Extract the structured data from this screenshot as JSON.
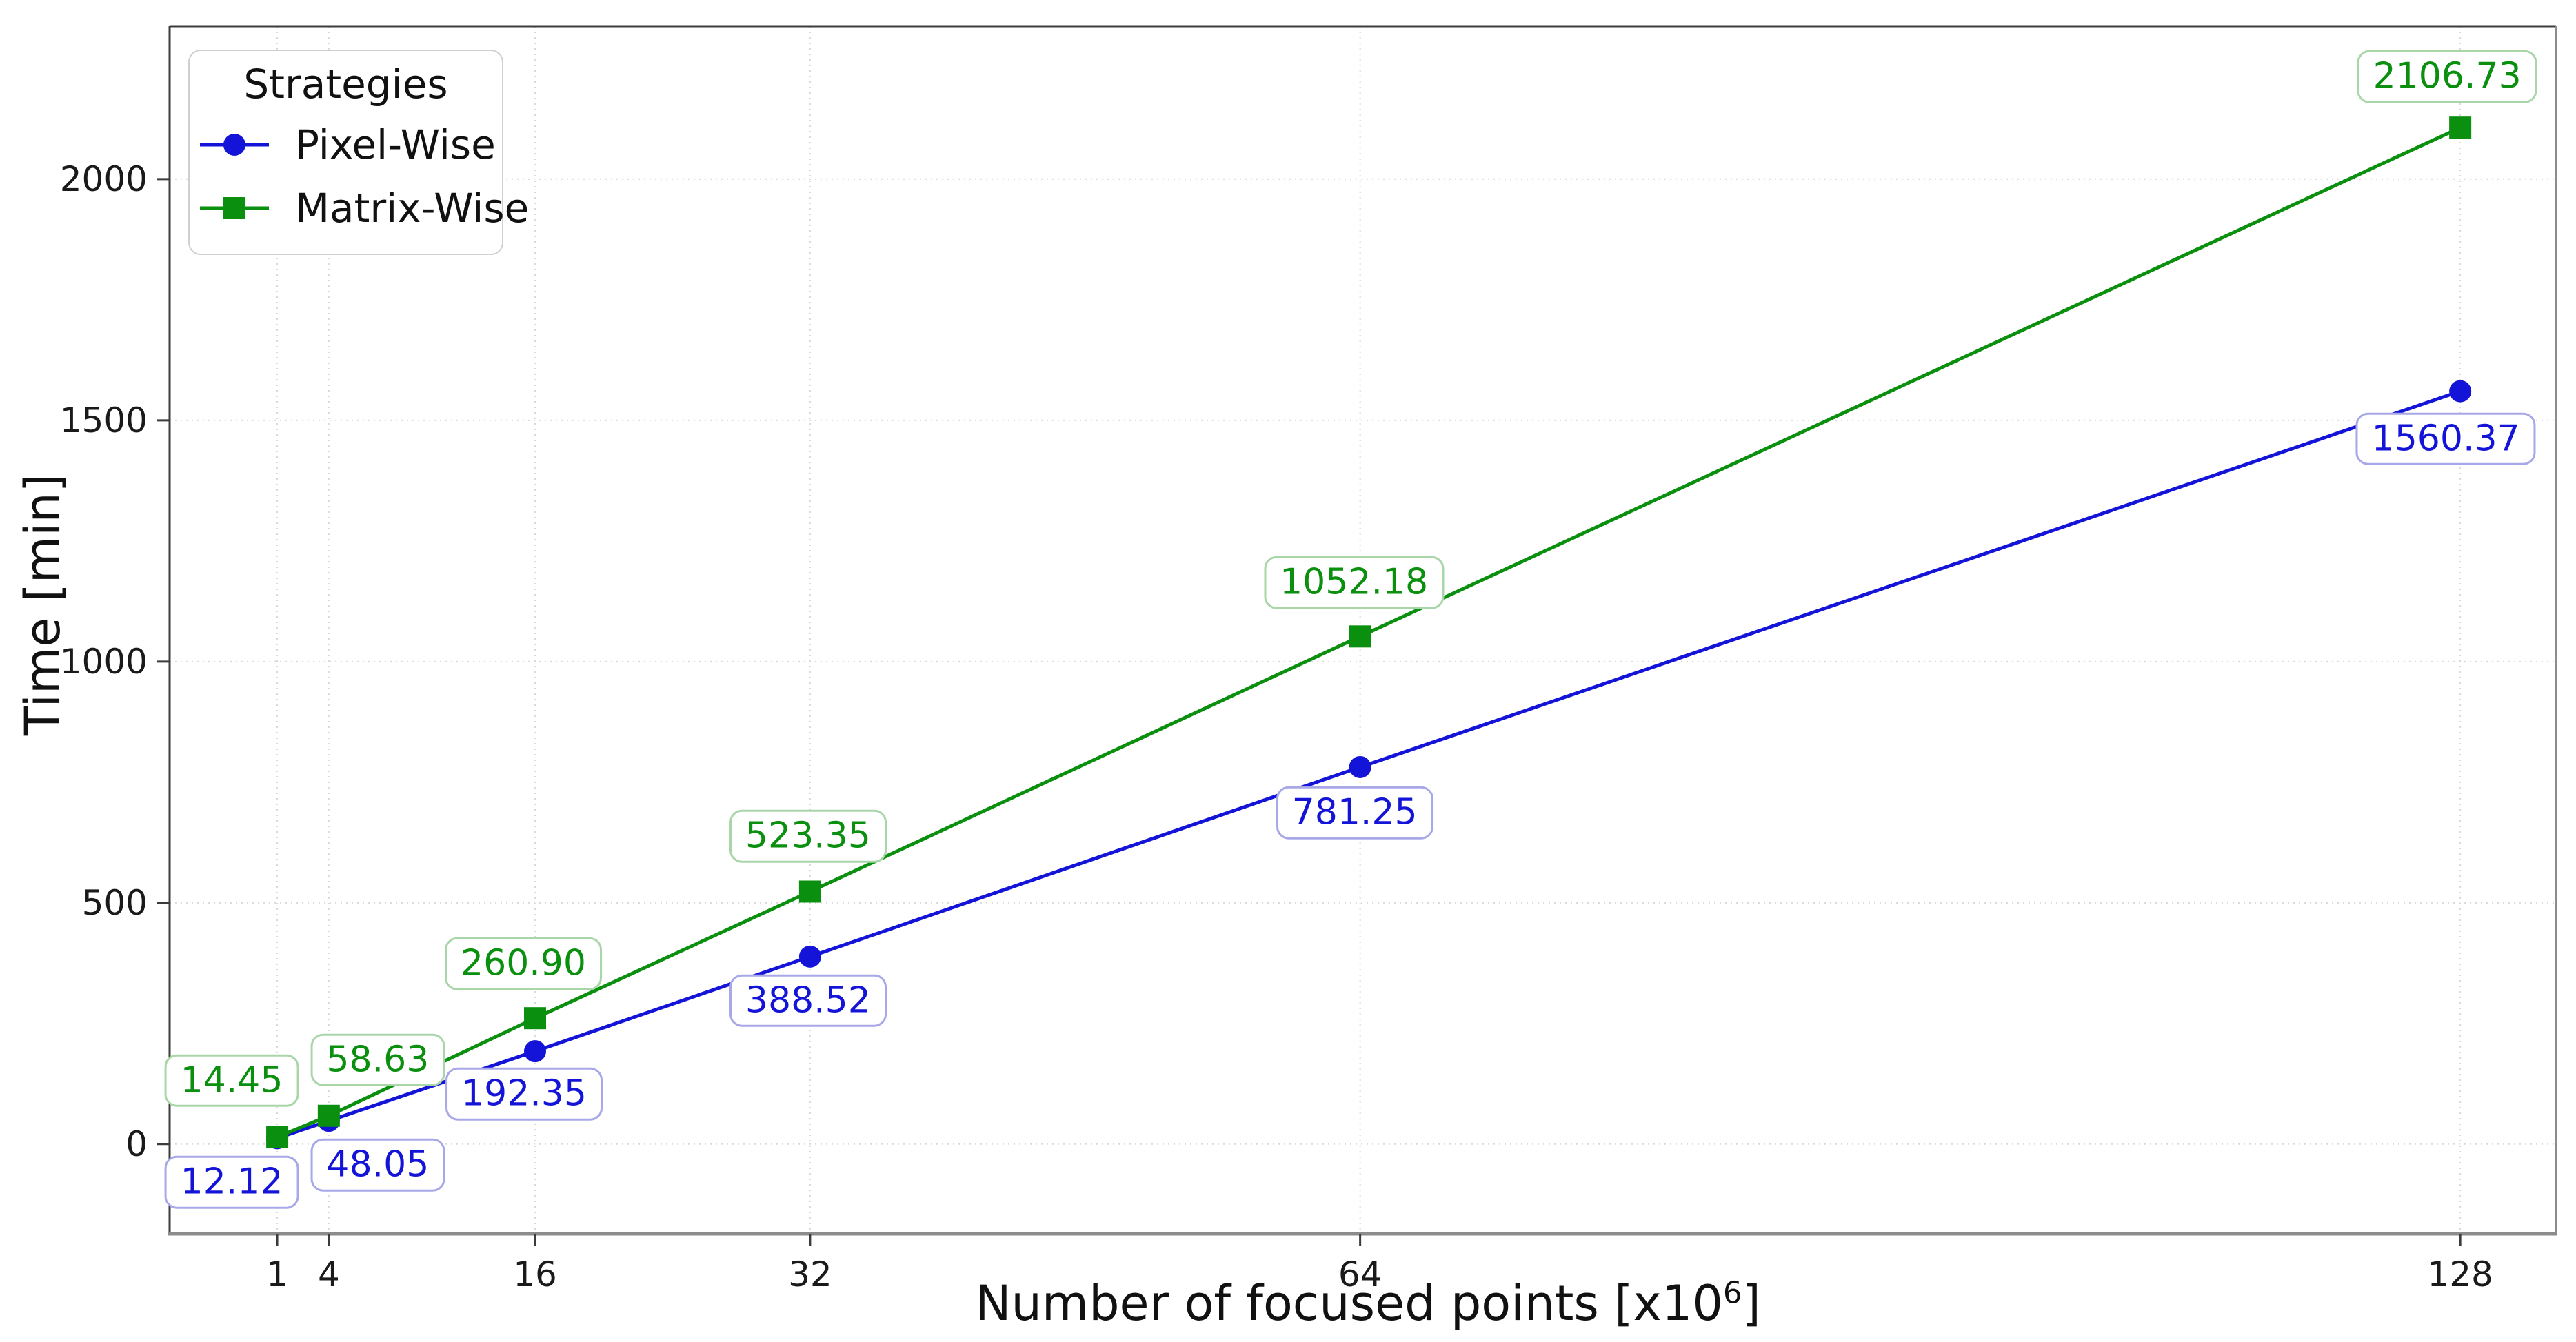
{
  "chart_data": {
    "type": "line",
    "xlabel": "Number of focused points [x10⁶]",
    "xlabel_main": "Number of focused points [x10",
    "xlabel_sup": "6",
    "xlabel_close": "]",
    "ylabel": "Time [min]",
    "x": [
      1,
      4,
      16,
      32,
      64,
      128
    ],
    "xticks": [
      1,
      4,
      16,
      32,
      64,
      128
    ],
    "xtick_labels": [
      "1",
      "4",
      "16",
      "32",
      "64",
      "128"
    ],
    "yticks": [
      0,
      500,
      1000,
      1500,
      2000
    ],
    "ytick_labels": [
      "0",
      "500",
      "1000",
      "1500",
      "2000"
    ],
    "xlim": [
      -5.26,
      133.57
    ],
    "ylim": [
      -186,
      2317
    ],
    "grid": true,
    "legend_position": "upper-left",
    "legend": {
      "title": "Strategies",
      "entries": [
        {
          "label": "Pixel-Wise",
          "color": "#1414d9",
          "marker": "circle"
        },
        {
          "label": "Matrix-Wise",
          "color": "#0a8f0f",
          "marker": "square"
        }
      ]
    },
    "series": [
      {
        "name": "Pixel-Wise",
        "color": "#1414d9",
        "marker": "circle",
        "values": [
          12.12,
          48.05,
          192.35,
          388.52,
          781.25,
          1560.37
        ],
        "labels": [
          "12.12",
          "48.05",
          "192.35",
          "388.52",
          "781.25",
          "1560.37"
        ],
        "label_dx": [
          -66,
          71,
          -16,
          -3,
          -8,
          -21
        ],
        "label_dy": [
          64,
          64,
          62,
          64,
          66,
          69
        ],
        "box_border": "#a8a8e8"
      },
      {
        "name": "Matrix-Wise",
        "color": "#0a8f0f",
        "marker": "square",
        "values": [
          14.45,
          58.63,
          260.9,
          523.35,
          1052.18,
          2106.73
        ],
        "labels": [
          "14.45",
          "58.63",
          "260.90",
          "523.35",
          "1052.18",
          "2106.73"
        ],
        "label_dx": [
          -66,
          71,
          -17,
          -3,
          -9,
          -19
        ],
        "label_dy": [
          -82,
          -81,
          -79,
          -80,
          -78,
          -74
        ],
        "box_border": "#a9d6a9"
      }
    ],
    "style": {
      "grid_color": "#d9d9d9",
      "spine_dark": "#3c3c3c",
      "spine_gray": "#8c8c8c",
      "tick_color": "#3c3c3c",
      "tick_label_color": "#1a1a1a",
      "background": "#ffffff"
    }
  }
}
